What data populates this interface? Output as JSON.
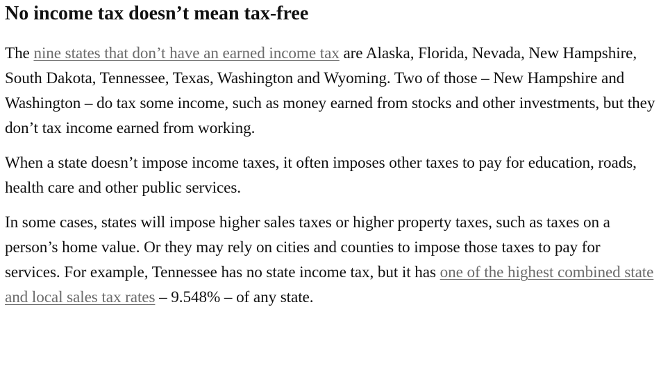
{
  "heading": "No income tax doesn’t mean tax-free",
  "paragraph1": {
    "before": "The ",
    "link": "nine states that don’t have an earned income tax",
    "after": " are Alaska, Florida, Nevada, New Hampshire, South Dakota, Tennessee, Texas, Washington and Wyoming. Two of those – New Hampshire and Washington – do tax some income, such as money earned from stocks and other investments, but they don’t tax income earned from working."
  },
  "paragraph2": {
    "text": "When a state doesn’t impose income taxes, it often imposes other taxes to pay for education, roads, health care and other public services."
  },
  "paragraph3": {
    "before": "In some cases, states will impose higher sales taxes or higher property taxes, such as taxes on a person’s home value. Or they may rely on cities and counties to impose those taxes to pay for services. For example, Tennessee has no state income tax, but it has ",
    "link": "one of the highest combined state and local sales tax rates",
    "after": " – 9.548% – of any state."
  },
  "colors": {
    "text": "#111111",
    "link": "#6b6b6b",
    "background": "#ffffff"
  }
}
